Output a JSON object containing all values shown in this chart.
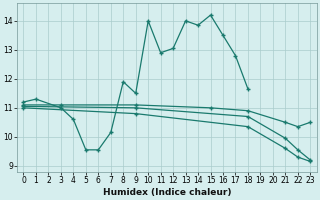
{
  "xlabel": "Humidex (Indice chaleur)",
  "bg_color": "#d6eeee",
  "grid_color": "#aacccc",
  "line_color": "#1a7a6e",
  "xlim": [
    -0.5,
    23.5
  ],
  "ylim": [
    8.8,
    14.6
  ],
  "yticks": [
    9,
    10,
    11,
    12,
    13,
    14
  ],
  "xticks": [
    0,
    1,
    2,
    3,
    4,
    5,
    6,
    7,
    8,
    9,
    10,
    11,
    12,
    13,
    14,
    15,
    16,
    17,
    18,
    19,
    20,
    21,
    22,
    23
  ],
  "curve1_x": [
    0,
    1,
    3,
    4,
    5,
    6,
    7,
    8,
    9,
    10,
    11,
    12,
    13,
    14,
    15,
    16,
    17,
    18
  ],
  "curve1_y": [
    11.2,
    11.3,
    11.0,
    10.6,
    9.55,
    9.55,
    10.15,
    11.9,
    11.5,
    14.0,
    12.9,
    13.05,
    14.0,
    13.85,
    14.2,
    13.5,
    12.8,
    11.65
  ],
  "line_flat1_x": [
    0,
    3,
    9,
    15,
    18,
    21,
    22,
    23
  ],
  "line_flat1_y": [
    11.1,
    11.1,
    11.1,
    11.0,
    10.9,
    10.5,
    10.35,
    10.5
  ],
  "line_diag1_x": [
    0,
    9,
    18,
    21,
    22,
    23
  ],
  "line_diag1_y": [
    11.05,
    11.0,
    10.7,
    9.95,
    9.55,
    9.2
  ],
  "line_diag2_x": [
    0,
    9,
    18,
    21,
    22,
    23
  ],
  "line_diag2_y": [
    11.0,
    10.8,
    10.35,
    9.6,
    9.3,
    9.15
  ]
}
